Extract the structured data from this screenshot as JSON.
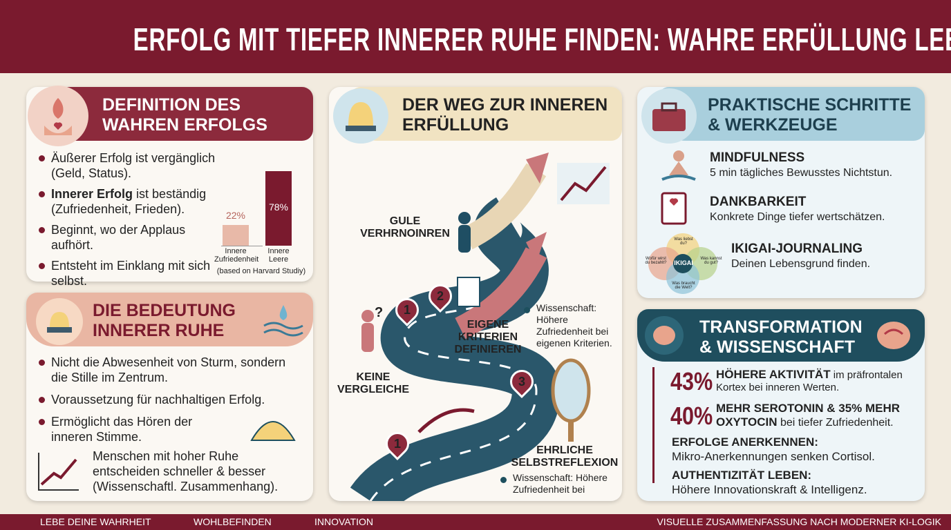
{
  "header": {
    "title": "ERFOLG MIT TIEFER INNERER RUHE FINDEN: WAHRE ERFÜLLUNG LEBEN"
  },
  "definition": {
    "title": "DEFINITION DES WAHREN ERFOLGS",
    "bullets": [
      {
        "text": "Äußerer Erfolg ist vergänglich (Geld, Status)."
      },
      {
        "bold": "Innerer Erfolg",
        "text": "ist beständig (Zufriedenheit, Frieden)."
      },
      {
        "text": "Beginnt, wo der Applaus aufhört."
      },
      {
        "text": "Entsteht im Einklang mit sich selbst."
      }
    ],
    "chart": {
      "bars": [
        {
          "label": "Innere Zufriedenheit",
          "value": 22,
          "value_label": "22%",
          "color": "#e8b9a8"
        },
        {
          "label": "Innere Leere",
          "value": 78,
          "value_label": "78%",
          "color": "#7a1a2e"
        }
      ],
      "source": "(based on Harvard Studiy)"
    }
  },
  "calm": {
    "title": "DIE BEDEUTUNG INNERER RUHE",
    "bullets": [
      "Nicht die Abwesenheit von Sturm, sondern die Stille im Zentrum.",
      "Voraussetzung für nachhaltigen Erfolg.",
      "Ermöglicht das Hören der inneren Stimme."
    ],
    "note": "Menschen mit hoher Ruhe entscheiden schneller & besser (Wissenschaftl. Zusammenhang)."
  },
  "path": {
    "title": "DER WEG ZUR INNEREN ERFÜLLUNG",
    "labels": {
      "top": "GULE VERHRNOINREN",
      "left": "KEINE VERGLEICHE",
      "middle": "EIGENE KRITERIEN DEFINIEREN",
      "bottom": "EHRLICHE SELBSTREFLEXION"
    },
    "science": [
      "Wissenschaft: Höhere Zufriedenheit bei eigenen Kriterien.",
      "Wissenschaft: Höhere Zufriedenheit bei"
    ],
    "markers": [
      "1",
      "2",
      "3",
      "1"
    ],
    "question": "?"
  },
  "tools": {
    "title": "PRAKTISCHE SCHRITTE & WERKZEUGE",
    "items": [
      {
        "title": "MINDFULNESS",
        "text": "5 min tägliches Bewusstes Nichtstun."
      },
      {
        "title": "DANKBARKEIT",
        "text": "Konkrete Dinge tiefer wertschätzen."
      },
      {
        "title": "IKIGAI-JOURNALING",
        "text": "Deinen Lebensgrund finden."
      }
    ],
    "ikigai": {
      "center": "IKIGAI",
      "circles": [
        "Was liebst du?",
        "Was kannst du gut?",
        "Was braucht die Welt?",
        "Wofür wirst du bezahlt?"
      ]
    }
  },
  "science": {
    "title": "TRANSFORMATION & WISSENSCHAFT",
    "items": [
      {
        "stat": "43%",
        "bold": "HÖHERE AKTIVITÄT",
        "text": "im präfrontalen Kortex bei inneren Werten."
      },
      {
        "stat": "40%",
        "bold": "MEHR SEROTONIN & 35% MEHR OXYTOCIN",
        "text": "bei tiefer Zufriedenheit."
      },
      {
        "bold": "ERFOLGE ANERKENNEN:",
        "text": "Mikro-Anerkennungen senken Cortisol."
      },
      {
        "bold": "AUTHENTIZITÄT LEBEN:",
        "text": "Höhere Innovationskraft & Intelligenz."
      }
    ]
  },
  "footer": {
    "items": [
      "LEBE DEINE WAHRHEIT",
      "WOHLBEFINDEN",
      "INNOVATION"
    ],
    "right": "VISUELLE ZUSAMMENFASSUNG NACH MODERNER KI-LOGIK"
  }
}
